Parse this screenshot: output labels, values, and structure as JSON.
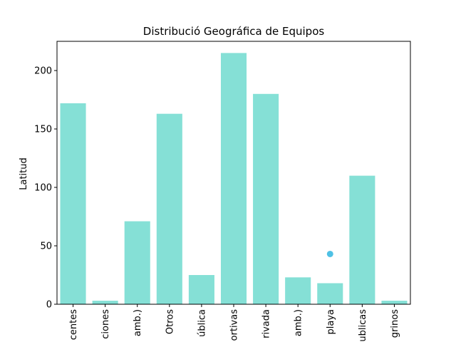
{
  "chart_data": {
    "type": "bar",
    "title": "Distribució Geográfica de Equipos",
    "xlabel": "",
    "ylabel": "Latitud",
    "categories": [
      "centes",
      "ciones",
      "amb.)",
      "Otros",
      "ública",
      "ortivas",
      "rivada",
      "amb.)",
      "playa",
      "ublicas",
      "grinos"
    ],
    "values": [
      172,
      3,
      71,
      163,
      25,
      215,
      180,
      23,
      18,
      110,
      3
    ],
    "ylim": [
      0,
      225
    ],
    "yticks": [
      0,
      50,
      100,
      150,
      200
    ],
    "scatter_points": [
      {
        "x_index": 8,
        "y": 43
      }
    ],
    "grid": false,
    "colors": {
      "bar": "#85e0d6",
      "point": "#4fc1e5",
      "axis": "#000000"
    }
  }
}
